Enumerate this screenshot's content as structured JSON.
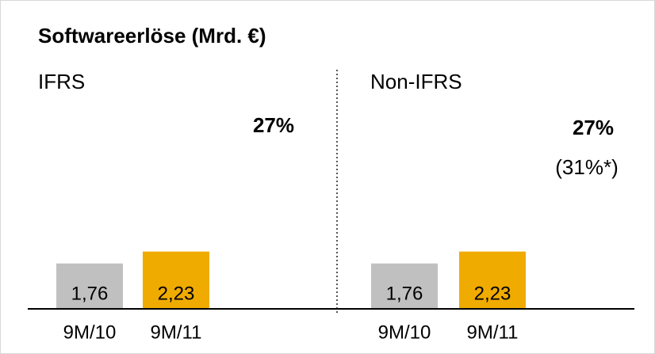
{
  "title": "Softwareerlöse (Mrd. €)",
  "chart_data": [
    {
      "type": "bar",
      "subtitle": "IFRS",
      "categories": [
        "9M/10",
        "9M/11"
      ],
      "values": [
        1.76,
        2.23
      ],
      "value_labels": [
        "1,76",
        "2,23"
      ],
      "colors": [
        "#c0c0c0",
        "#f0ab00"
      ],
      "annotations": [
        "27%"
      ]
    },
    {
      "type": "bar",
      "subtitle": "Non-IFRS",
      "categories": [
        "9M/10",
        "9M/11"
      ],
      "values": [
        1.76,
        2.23
      ],
      "value_labels": [
        "1,76",
        "2,23"
      ],
      "colors": [
        "#c0c0c0",
        "#f0ab00"
      ],
      "annotations": [
        "27%",
        "(31%*)"
      ]
    }
  ]
}
